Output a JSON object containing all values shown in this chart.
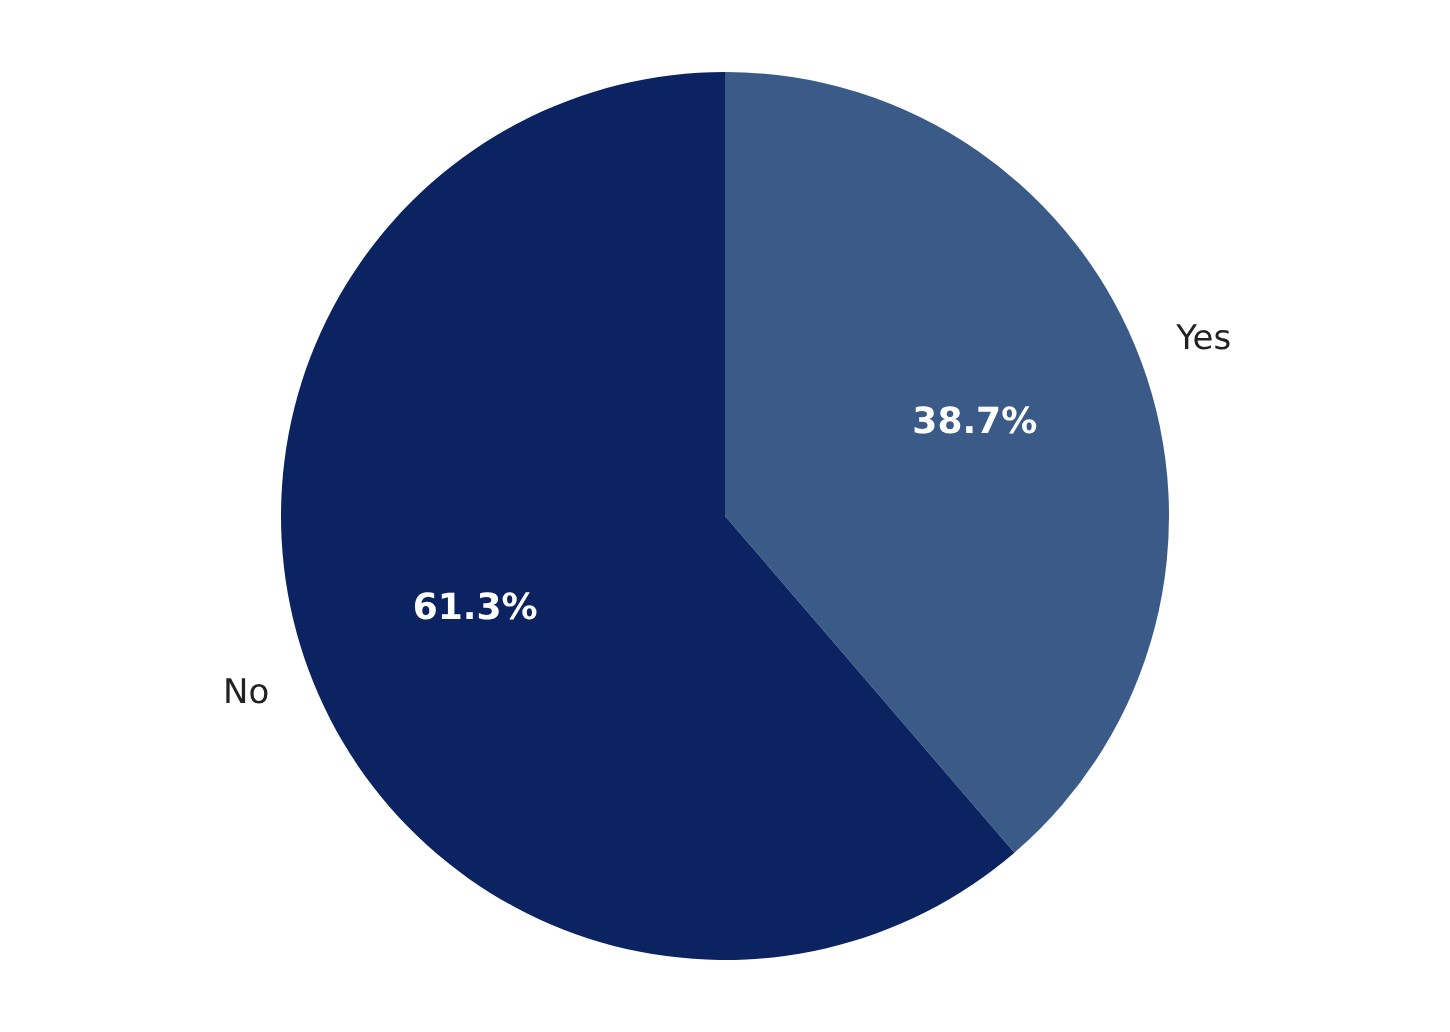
{
  "chart_data": {
    "type": "pie",
    "categories": [
      "Yes",
      "No"
    ],
    "values": [
      38.7,
      61.3
    ],
    "colors": [
      "#3a5a88",
      "#0b2360"
    ],
    "value_labels": [
      "38.7%",
      "61.3%"
    ],
    "legend": false
  }
}
